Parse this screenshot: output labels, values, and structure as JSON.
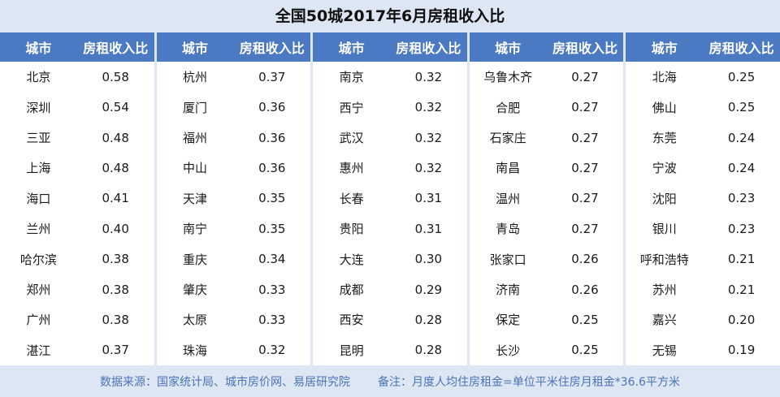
{
  "title": "全国50城2017年6月房租收入比",
  "headers": {
    "city": "城市",
    "ratio": "房租收入比"
  },
  "groups": [
    {
      "rows": [
        {
          "city": "北京",
          "ratio": "0.58"
        },
        {
          "city": "深圳",
          "ratio": "0.54"
        },
        {
          "city": "三亚",
          "ratio": "0.48"
        },
        {
          "city": "上海",
          "ratio": "0.48"
        },
        {
          "city": "海口",
          "ratio": "0.41"
        },
        {
          "city": "兰州",
          "ratio": "0.40"
        },
        {
          "city": "哈尔滨",
          "ratio": "0.38"
        },
        {
          "city": "郑州",
          "ratio": "0.38"
        },
        {
          "city": "广州",
          "ratio": "0.38"
        },
        {
          "city": "湛江",
          "ratio": "0.37"
        }
      ]
    },
    {
      "rows": [
        {
          "city": "杭州",
          "ratio": "0.37"
        },
        {
          "city": "厦门",
          "ratio": "0.36"
        },
        {
          "city": "福州",
          "ratio": "0.36"
        },
        {
          "city": "中山",
          "ratio": "0.36"
        },
        {
          "city": "天津",
          "ratio": "0.35"
        },
        {
          "city": "南宁",
          "ratio": "0.35"
        },
        {
          "city": "重庆",
          "ratio": "0.34"
        },
        {
          "city": "肇庆",
          "ratio": "0.33"
        },
        {
          "city": "太原",
          "ratio": "0.33"
        },
        {
          "city": "珠海",
          "ratio": "0.32"
        }
      ]
    },
    {
      "rows": [
        {
          "city": "南京",
          "ratio": "0.32"
        },
        {
          "city": "西宁",
          "ratio": "0.32"
        },
        {
          "city": "武汉",
          "ratio": "0.32"
        },
        {
          "city": "惠州",
          "ratio": "0.32"
        },
        {
          "city": "长春",
          "ratio": "0.31"
        },
        {
          "city": "贵阳",
          "ratio": "0.31"
        },
        {
          "city": "大连",
          "ratio": "0.30"
        },
        {
          "city": "成都",
          "ratio": "0.29"
        },
        {
          "city": "西安",
          "ratio": "0.28"
        },
        {
          "city": "昆明",
          "ratio": "0.28"
        }
      ]
    },
    {
      "rows": [
        {
          "city": "乌鲁木齐",
          "ratio": "0.27"
        },
        {
          "city": "合肥",
          "ratio": "0.27"
        },
        {
          "city": "石家庄",
          "ratio": "0.27"
        },
        {
          "city": "南昌",
          "ratio": "0.27"
        },
        {
          "city": "温州",
          "ratio": "0.27"
        },
        {
          "city": "青岛",
          "ratio": "0.27"
        },
        {
          "city": "张家口",
          "ratio": "0.26"
        },
        {
          "city": "济南",
          "ratio": "0.26"
        },
        {
          "city": "保定",
          "ratio": "0.25"
        },
        {
          "city": "长沙",
          "ratio": "0.25"
        }
      ]
    },
    {
      "rows": [
        {
          "city": "北海",
          "ratio": "0.25"
        },
        {
          "city": "佛山",
          "ratio": "0.25"
        },
        {
          "city": "东莞",
          "ratio": "0.24"
        },
        {
          "city": "宁波",
          "ratio": "0.24"
        },
        {
          "city": "沈阳",
          "ratio": "0.23"
        },
        {
          "city": "银川",
          "ratio": "0.23"
        },
        {
          "city": "呼和浩特",
          "ratio": "0.21"
        },
        {
          "city": "苏州",
          "ratio": "0.21"
        },
        {
          "city": "嘉兴",
          "ratio": "0.20"
        },
        {
          "city": "无锡",
          "ratio": "0.19"
        }
      ]
    }
  ],
  "footer": {
    "source": "数据来源：国家统计局、城市房价网、易居研究院",
    "note": "备注：月度人均住房租金=单位平米住房月租金*36.6平方米"
  },
  "colors": {
    "header_bg": "#4b79c2",
    "header_text": "#ffffff",
    "frame_bg": "#dde6f3",
    "footer_text": "#4b73b7"
  }
}
